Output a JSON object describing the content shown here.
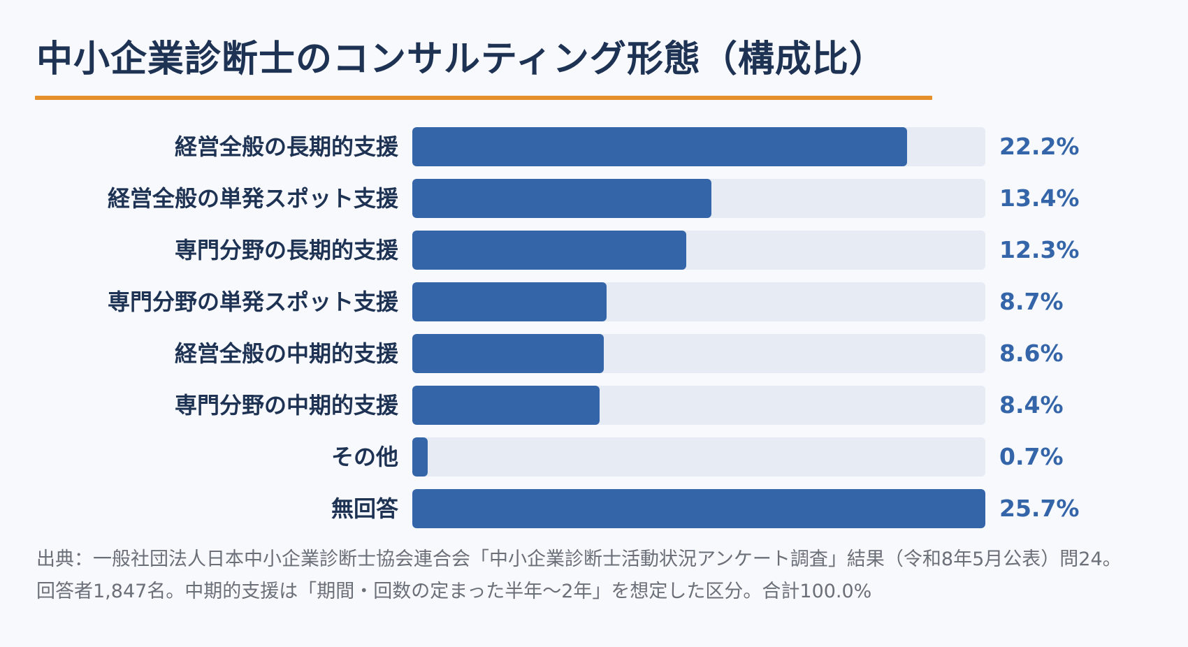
{
  "chart_data": {
    "type": "bar",
    "orientation": "horizontal",
    "title": "中小企業診断士のコンサルティング形態（構成比）",
    "categories": [
      "経営全般の長期的支援",
      "経営全般の単発スポット支援",
      "専門分野の長期的支援",
      "専門分野の単発スポット支援",
      "経営全般の中期的支援",
      "専門分野の中期的支援",
      "その他",
      "無回答"
    ],
    "values": [
      22.2,
      13.4,
      12.3,
      8.7,
      8.6,
      8.4,
      0.7,
      25.7
    ],
    "value_labels": [
      "22.2%",
      "13.4%",
      "12.3%",
      "8.7%",
      "8.6%",
      "8.4%",
      "0.7%",
      "25.7%"
    ],
    "xlim": [
      0,
      25.7
    ],
    "grid": false,
    "legend": "none",
    "colors": {
      "bar": "#3565a9",
      "track": "#e6ebf4",
      "accent_rule": "#e5902a",
      "title": "#1e3354",
      "value_text": "#3565a9"
    }
  },
  "source_note": "出典：一般社団法人日本中小企業診断士協会連合会「中小企業診断士活動状況アンケート調査」結果（令和8年5月公表）問24。回答者1,847名。中期的支援は「期間・回数の定まった半年〜2年」を想定した区分。合計100.0%"
}
